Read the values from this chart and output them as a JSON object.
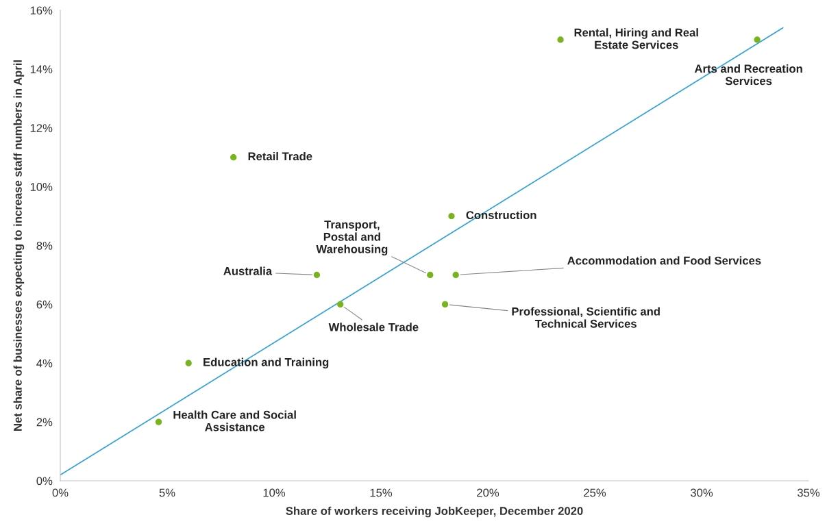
{
  "chart_data": {
    "type": "scatter",
    "xlabel": "Share of workers receiving JobKeeper, December 2020",
    "ylabel": "Net share of businesses expecting to increase staff numbers in April",
    "xlim": [
      0,
      35
    ],
    "ylim": [
      0,
      16
    ],
    "xticks": [
      {
        "value": 0,
        "label": "0%"
      },
      {
        "value": 5,
        "label": "5%"
      },
      {
        "value": 10,
        "label": "10%"
      },
      {
        "value": 15,
        "label": "15%"
      },
      {
        "value": 20,
        "label": "20%"
      },
      {
        "value": 25,
        "label": "25%"
      },
      {
        "value": 30,
        "label": "30%"
      },
      {
        "value": 35,
        "label": "35%"
      }
    ],
    "yticks": [
      {
        "value": 0,
        "label": "0%"
      },
      {
        "value": 2,
        "label": "2%"
      },
      {
        "value": 4,
        "label": "4%"
      },
      {
        "value": 6,
        "label": "6%"
      },
      {
        "value": 8,
        "label": "8%"
      },
      {
        "value": 10,
        "label": "10%"
      },
      {
        "value": 12,
        "label": "12%"
      },
      {
        "value": 14,
        "label": "14%"
      },
      {
        "value": 16,
        "label": "16%"
      }
    ],
    "marker": "circle",
    "grid": false,
    "legend": false,
    "series": [
      {
        "color": "#78b41e",
        "x": [
          23.4,
          32.6,
          8.1,
          18.3,
          12.0,
          17.3,
          18.5,
          13.1,
          18.0,
          6.0,
          4.6
        ],
        "values": [
          15,
          15,
          11,
          9,
          7,
          7,
          7,
          6,
          6,
          4,
          2
        ]
      },
      {
        "type": "line",
        "marker": "none",
        "color": "#2ea3dc",
        "x": [
          0,
          33.8
        ],
        "values": [
          0.2,
          15.4
        ]
      }
    ],
    "annotations": [
      {
        "text": "Rental, Hiring and Real\nEstate Services",
        "x": 23.4,
        "y": 15
      },
      {
        "text": "Arts and Recreation\nServices",
        "x": 32.6,
        "y": 15
      },
      {
        "text": "Retail Trade",
        "x": 8.1,
        "y": 11
      },
      {
        "text": "Construction",
        "x": 18.3,
        "y": 9
      },
      {
        "text": "Australia",
        "x": 12.0,
        "y": 7
      },
      {
        "text": "Transport,\nPostal and\nWarehousing",
        "x": 17.3,
        "y": 7
      },
      {
        "text": "Accommodation and Food Services",
        "x": 18.5,
        "y": 7
      },
      {
        "text": "Wholesale Trade",
        "x": 13.1,
        "y": 6
      },
      {
        "text": "Professional, Scientific and\nTechnical Services",
        "x": 18.0,
        "y": 6
      },
      {
        "text": "Education and Training",
        "x": 6.0,
        "y": 4
      },
      {
        "text": "Health Care and Social\nAssistance",
        "x": 4.6,
        "y": 2
      }
    ]
  }
}
